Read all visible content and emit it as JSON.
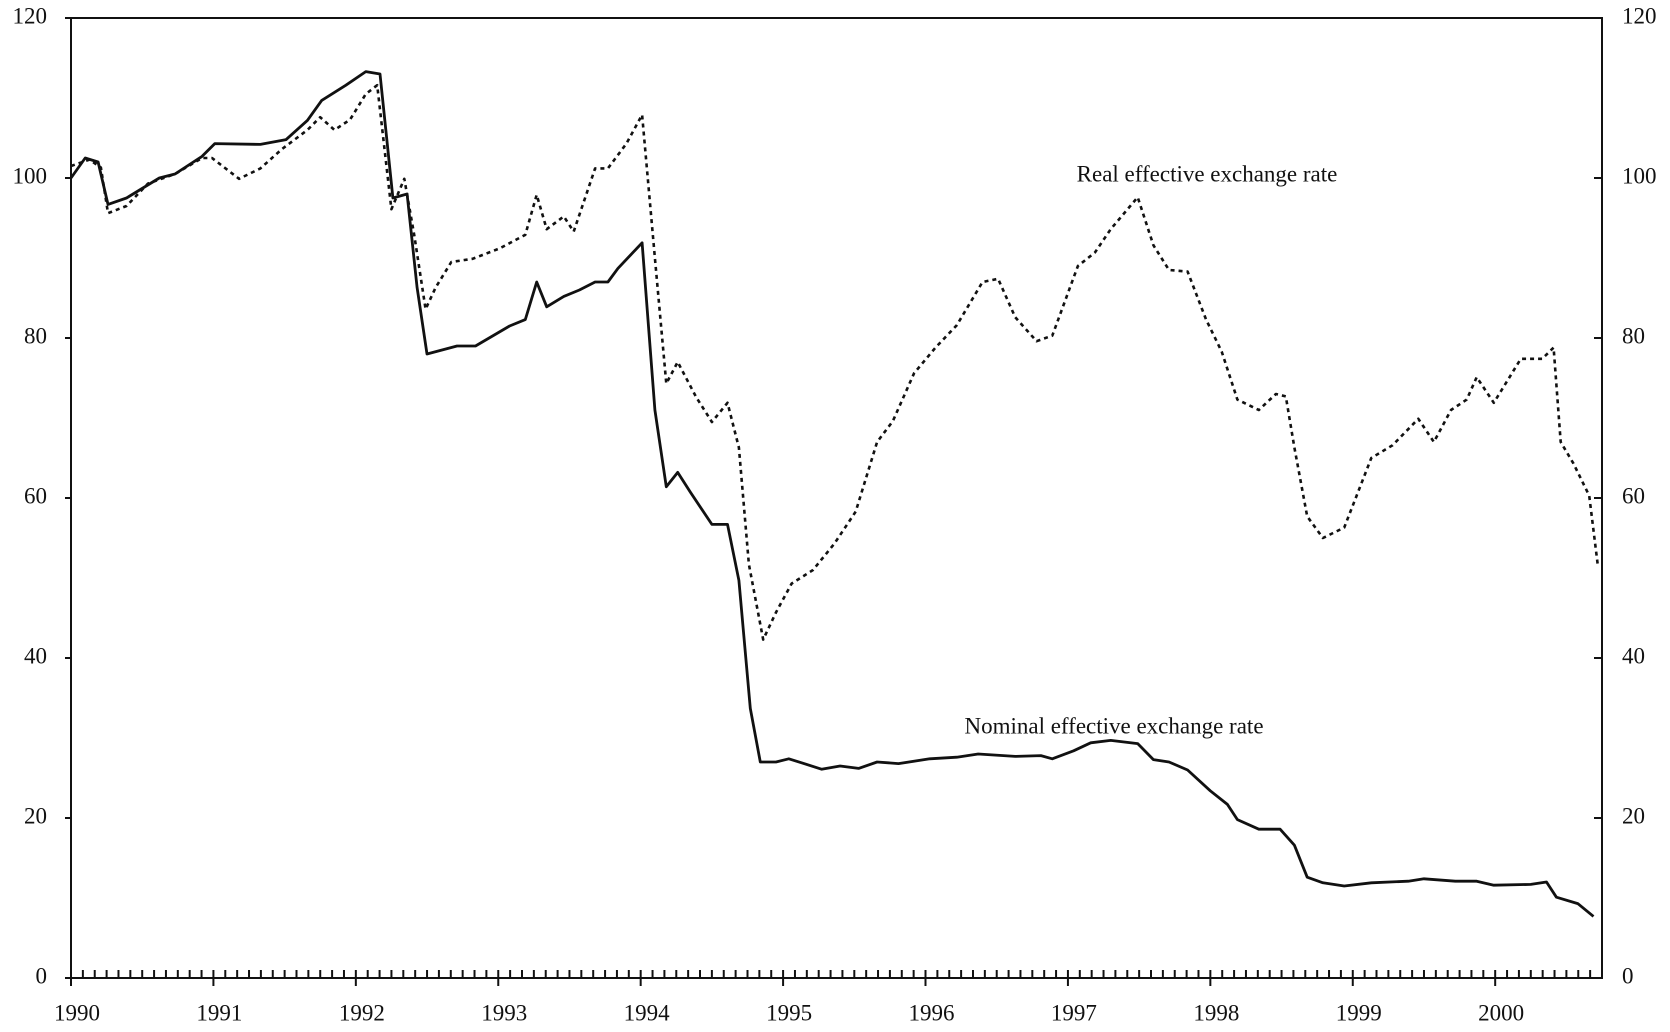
{
  "chart_data": {
    "type": "line",
    "xlim": [
      1990,
      2000.75
    ],
    "xticks": [
      1990,
      1991,
      1992,
      1993,
      1994,
      1995,
      1996,
      1997,
      1998,
      1999,
      2000
    ],
    "ylim": [
      0,
      120
    ],
    "yticks": [
      0,
      20,
      40,
      60,
      80,
      100,
      120
    ],
    "annotations": [
      "Real effective exchange rate",
      "Nominal effective exchange rate"
    ],
    "series": [
      {
        "name": "Nominal effective exchange rate",
        "color": "#111111",
        "style": "solid",
        "x": [
          1990.0,
          1990.1,
          1990.19,
          1990.26,
          1990.39,
          1990.62,
          1990.73,
          1990.92,
          1991.01,
          1991.33,
          1991.51,
          1991.66,
          1991.76,
          1991.93,
          1992.07,
          1992.17,
          1992.26,
          1992.36,
          1992.43,
          1992.5,
          1992.71,
          1992.84,
          1993.08,
          1993.19,
          1993.27,
          1993.34,
          1993.46,
          1993.57,
          1993.68,
          1993.77,
          1993.84,
          1994.01,
          1994.1,
          1994.18,
          1994.26,
          1994.35,
          1994.5,
          1994.61,
          1994.69,
          1994.77,
          1994.84,
          1994.95,
          1995.04,
          1995.13,
          1995.27,
          1995.4,
          1995.53,
          1995.66,
          1995.81,
          1996.03,
          1996.22,
          1996.37,
          1996.63,
          1996.81,
          1996.89,
          1997.04,
          1997.16,
          1997.3,
          1997.49,
          1997.6,
          1997.71,
          1997.84,
          1998.0,
          1998.12,
          1998.19,
          1998.34,
          1998.49,
          1998.59,
          1998.68,
          1998.79,
          1998.94,
          1999.13,
          1999.39,
          1999.5,
          1999.72,
          1999.87,
          1999.99,
          2000.25,
          2000.36,
          2000.43,
          2000.58,
          2000.69
        ],
        "values": [
          100,
          102.5,
          102,
          96.7,
          97.5,
          100,
          100.5,
          102.7,
          104.3,
          104.2,
          104.8,
          107.2,
          109.7,
          111.6,
          113.3,
          113,
          97.5,
          98,
          86.3,
          78,
          79,
          79,
          81.5,
          82.3,
          87,
          83.9,
          85.2,
          86,
          87,
          87,
          88.7,
          91.9,
          71,
          61.4,
          63.2,
          60.7,
          56.7,
          56.7,
          49.7,
          33.7,
          27,
          27,
          27.4,
          26.9,
          26.1,
          26.5,
          26.2,
          27,
          26.8,
          27.4,
          27.6,
          28,
          27.7,
          27.8,
          27.4,
          28.4,
          29.4,
          29.7,
          29.3,
          27.3,
          27,
          26,
          23.4,
          21.7,
          19.8,
          18.6,
          18.6,
          16.6,
          12.6,
          11.9,
          11.5,
          11.9,
          12.1,
          12.4,
          12.1,
          12.1,
          11.6,
          11.7,
          12,
          10.1,
          9.3,
          7.7
        ]
      },
      {
        "name": "Real effective exchange rate",
        "color": "#111111",
        "style": "dotted",
        "x": [
          1990.0,
          1990.13,
          1990.21,
          1990.26,
          1990.39,
          1990.54,
          1990.73,
          1990.92,
          1990.99,
          1991.18,
          1991.33,
          1991.48,
          1991.66,
          1991.75,
          1991.85,
          1991.96,
          1992.07,
          1992.15,
          1992.25,
          1992.34,
          1992.41,
          1992.49,
          1992.56,
          1992.67,
          1992.82,
          1993.01,
          1993.19,
          1993.27,
          1993.34,
          1993.46,
          1993.53,
          1993.68,
          1993.77,
          1993.9,
          1994.01,
          1994.1,
          1994.18,
          1994.26,
          1994.39,
          1994.5,
          1994.61,
          1994.69,
          1994.76,
          1994.86,
          1994.95,
          1995.06,
          1995.21,
          1995.36,
          1995.51,
          1995.66,
          1995.77,
          1995.92,
          1996.07,
          1996.22,
          1996.4,
          1996.51,
          1996.63,
          1996.78,
          1996.89,
          1997.07,
          1997.19,
          1997.3,
          1997.49,
          1997.6,
          1997.71,
          1997.84,
          1997.97,
          1998.08,
          1998.19,
          1998.34,
          1998.46,
          1998.53,
          1998.59,
          1998.68,
          1998.79,
          1998.94,
          1999.13,
          1999.28,
          1999.46,
          1999.57,
          1999.69,
          1999.8,
          1999.87,
          1999.99,
          2000.18,
          2000.33,
          2000.41,
          2000.46,
          2000.55,
          2000.66,
          2000.72
        ],
        "values": [
          101.5,
          102.3,
          101.3,
          95.6,
          96.5,
          99.3,
          100.5,
          102.5,
          102.5,
          99.9,
          101.2,
          103.6,
          106,
          107.6,
          106,
          107.3,
          110.5,
          111.6,
          96.1,
          99.9,
          92.9,
          83.6,
          86.3,
          89.5,
          89.9,
          91.2,
          92.9,
          97.9,
          93.6,
          95.2,
          93.3,
          101.2,
          101.2,
          104.3,
          107.9,
          90,
          74.3,
          77,
          72.6,
          69.5,
          71.9,
          66.3,
          51.7,
          42.3,
          45.7,
          49.3,
          51,
          54.3,
          58.3,
          67,
          69.6,
          75.6,
          78.8,
          81.6,
          87,
          87.4,
          82.6,
          79.6,
          80.3,
          89,
          90.7,
          93.6,
          97.6,
          91.6,
          88.5,
          88.3,
          82.3,
          78.3,
          72.3,
          71,
          73,
          72.7,
          66.3,
          57.7,
          55,
          56.3,
          65,
          66.6,
          69.9,
          67,
          71,
          72.3,
          75.1,
          71.9,
          77.4,
          77.4,
          78.8,
          67,
          64.3,
          60.3,
          51.7
        ]
      }
    ]
  }
}
